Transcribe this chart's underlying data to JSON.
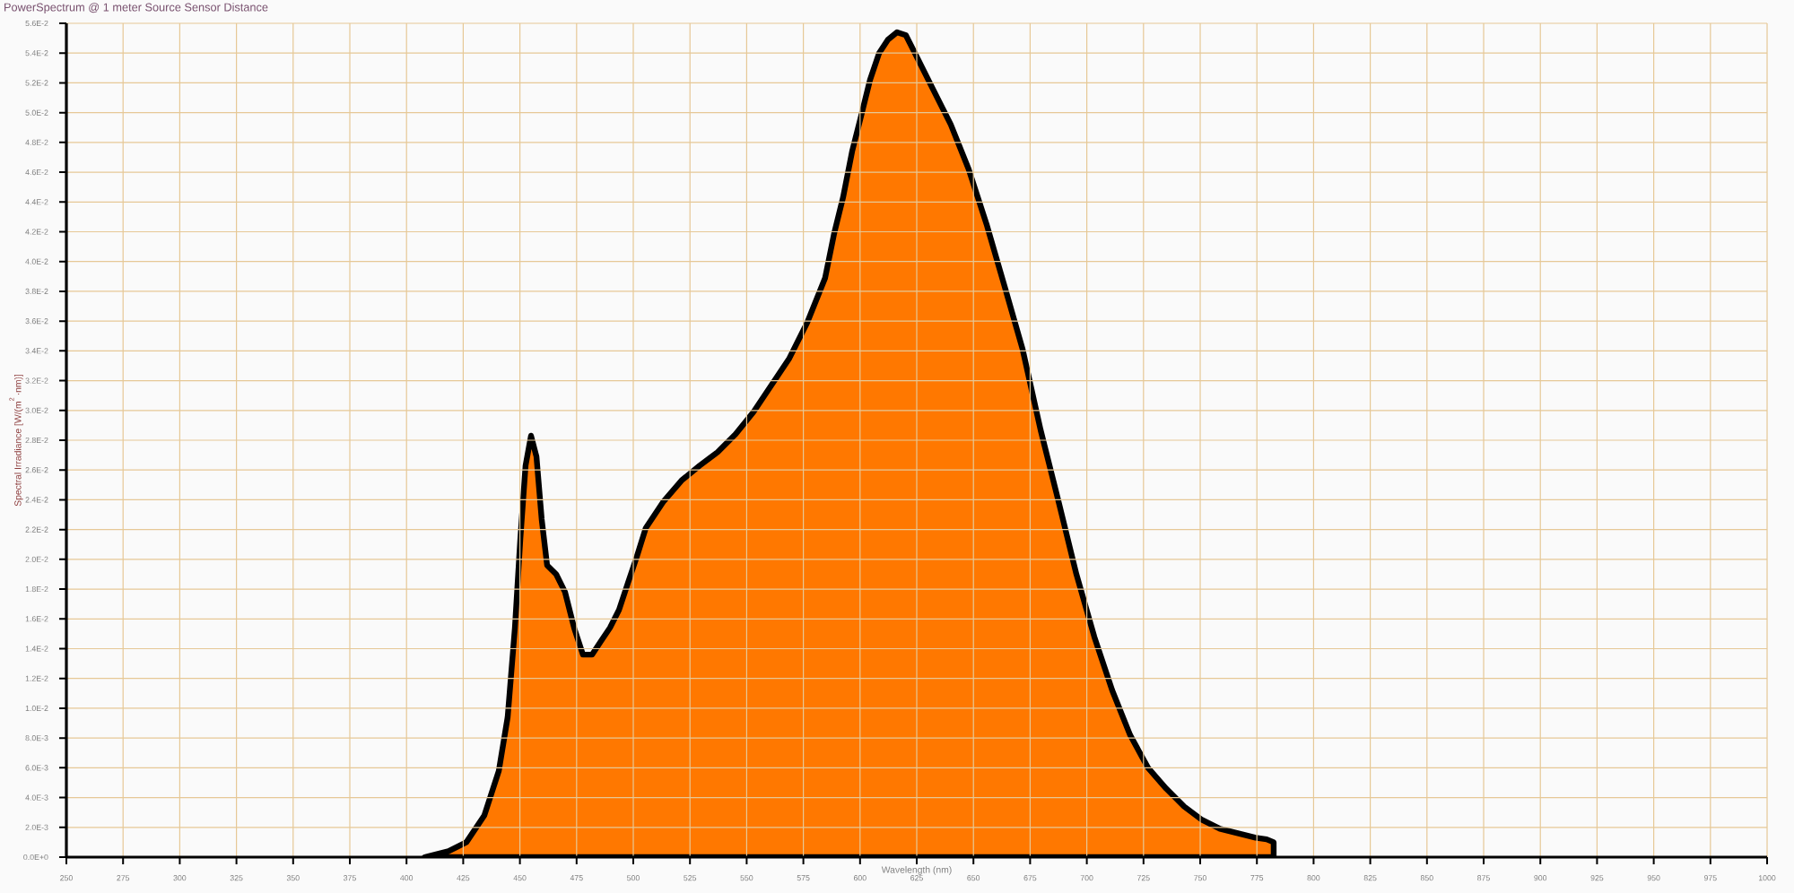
{
  "chart_data": {
    "type": "area",
    "title": "PowerSpectrum @ 1 meter Source Sensor Distance",
    "xlabel": "Wavelength (nm)",
    "ylabel": "Spectral Irradiance [W/(m$^{2}$·nm)]",
    "xlim": [
      250,
      1000
    ],
    "xticks": [
      250,
      275,
      300,
      325,
      350,
      375,
      400,
      425,
      450,
      475,
      500,
      525,
      550,
      575,
      600,
      625,
      650,
      675,
      700,
      725,
      750,
      775,
      800,
      825,
      850,
      875,
      900,
      925,
      950,
      975,
      1000
    ],
    "ylim": [
      0,
      0.056
    ],
    "yticks": [
      {
        "value": 0,
        "label": "0.0E+0"
      },
      {
        "value": 0.002,
        "label": "2.0E-3"
      },
      {
        "value": 0.004,
        "label": "4.0E-3"
      },
      {
        "value": 0.006,
        "label": "6.0E-3"
      },
      {
        "value": 0.008,
        "label": "8.0E-3"
      },
      {
        "value": 0.01,
        "label": "1.0E-2"
      },
      {
        "value": 0.012,
        "label": "1.2E-2"
      },
      {
        "value": 0.014,
        "label": "1.4E-2"
      },
      {
        "value": 0.016,
        "label": "1.6E-2"
      },
      {
        "value": 0.018,
        "label": "1.8E-2"
      },
      {
        "value": 0.02,
        "label": "2.0E-2"
      },
      {
        "value": 0.022,
        "label": "2.2E-2"
      },
      {
        "value": 0.024,
        "label": "2.4E-2"
      },
      {
        "value": 0.026,
        "label": "2.6E-2"
      },
      {
        "value": 0.028,
        "label": "2.8E-2"
      },
      {
        "value": 0.03,
        "label": "3.0E-2"
      },
      {
        "value": 0.032,
        "label": "3.2E-2"
      },
      {
        "value": 0.034,
        "label": "3.4E-2"
      },
      {
        "value": 0.036,
        "label": "3.6E-2"
      },
      {
        "value": 0.038,
        "label": "3.8E-2"
      },
      {
        "value": 0.04,
        "label": "4.0E-2"
      },
      {
        "value": 0.042,
        "label": "4.2E-2"
      },
      {
        "value": 0.044,
        "label": "4.4E-2"
      },
      {
        "value": 0.046,
        "label": "4.6E-2"
      },
      {
        "value": 0.048,
        "label": "4.8E-2"
      },
      {
        "value": 0.05,
        "label": "5.0E-2"
      },
      {
        "value": 0.052,
        "label": "5.2E-2"
      },
      {
        "value": 0.054,
        "label": "5.4E-2"
      },
      {
        "value": 0.056,
        "label": "5.6E-2"
      }
    ],
    "grid": true,
    "marker": "none",
    "line_style": "solid",
    "series": [
      {
        "color": "#000000",
        "x": [
          408,
          418.5,
          426.4,
          434.3,
          440.7,
          444.6,
          447.8,
          450.2,
          452.5,
          454.9,
          457.3,
          459.6,
          462,
          466,
          469.9,
          473.9,
          477.8,
          481.8,
          485.7,
          489.7,
          493.7,
          497.6,
          501.6,
          505.5,
          513.4,
          521.3,
          529.3,
          537.2,
          545.1,
          553,
          560.9,
          568.8,
          576.7,
          584.6,
          588.6,
          592.5,
          596.5,
          600.5,
          604.4,
          608.4,
          612.3,
          616.3,
          620.2,
          624.2,
          632.1,
          640,
          647.9,
          655.8,
          663.8,
          671.7,
          679.6,
          687.5,
          695.4,
          703.3,
          711.2,
          719.1,
          727,
          735,
          742.9,
          750.8,
          758.7,
          766.6,
          774.5,
          779.3,
          782.4,
          782.4
        ],
        "values": [
          0,
          0.0004,
          0.001,
          0.0028,
          0.0058,
          0.0094,
          0.0154,
          0.0214,
          0.0263,
          0.0283,
          0.0269,
          0.0227,
          0.0196,
          0.019,
          0.0178,
          0.0154,
          0.0136,
          0.0136,
          0.0145,
          0.0154,
          0.0166,
          0.0184,
          0.0202,
          0.0221,
          0.0239,
          0.0253,
          0.0263,
          0.0272,
          0.0284,
          0.0299,
          0.0317,
          0.0335,
          0.0359,
          0.0389,
          0.0419,
          0.0443,
          0.0474,
          0.0498,
          0.0522,
          0.054,
          0.0549,
          0.0554,
          0.0552,
          0.054,
          0.0516,
          0.0492,
          0.0462,
          0.0425,
          0.0383,
          0.0341,
          0.0287,
          0.0239,
          0.019,
          0.0148,
          0.0112,
          0.0082,
          0.006,
          0.0046,
          0.0034,
          0.0025,
          0.0019,
          0.0016,
          0.0013,
          0.0012,
          0.001,
          0
        ]
      }
    ]
  }
}
